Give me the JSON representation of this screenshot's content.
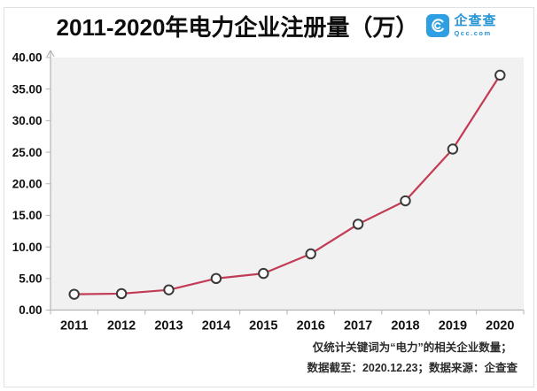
{
  "header": {
    "title": "2011-2020年电力企业注册量（万）",
    "logo": {
      "name_cn": "企查查",
      "name_en": "Qcc.com",
      "brand_color": "#2d9fe2"
    }
  },
  "chart_data": {
    "type": "line",
    "title": "2011-2020年电力企业注册量（万）",
    "categories": [
      "2011",
      "2012",
      "2013",
      "2014",
      "2015",
      "2016",
      "2017",
      "2018",
      "2019",
      "2020"
    ],
    "values": [
      2.5,
      2.6,
      3.2,
      5.0,
      5.8,
      8.9,
      13.6,
      17.3,
      25.5,
      37.2
    ],
    "xlabel": "",
    "ylabel": "",
    "ylim": [
      0,
      40
    ],
    "ytick_step": 5,
    "ytick_labels": [
      "0.00",
      "5.00",
      "10.00",
      "15.00",
      "20.00",
      "25.00",
      "30.00",
      "35.00",
      "40.00"
    ],
    "grid": false,
    "legend": "none",
    "line_color": "#c23b54",
    "marker": "open-circle",
    "marker_stroke": "#3a3a3a",
    "marker_fill": "#fcfcfc",
    "plot_bg": "#f1f1f1",
    "axis_color": "#b3b3b3",
    "tick_label_color": "#111111"
  },
  "footer": {
    "note_line1": "仅统计关键词为“电力”的相关企业数量；",
    "note_line2": "数据截至：2020.12.23；数据来源：企查查"
  }
}
